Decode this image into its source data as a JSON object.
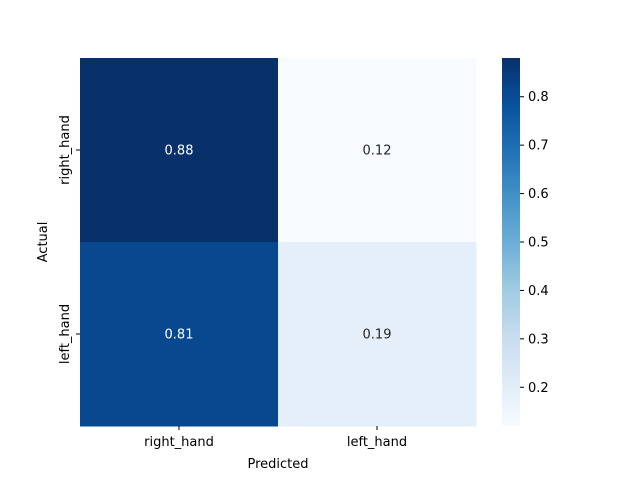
{
  "chart_data": {
    "type": "heatmap",
    "title": "",
    "xlabel": "Predicted",
    "ylabel": "Actual",
    "x_categories": [
      "right_hand",
      "left_hand"
    ],
    "y_categories": [
      "right_hand",
      "left_hand"
    ],
    "values": [
      [
        0.88,
        0.12
      ],
      [
        0.81,
        0.19
      ]
    ],
    "value_labels": [
      [
        "0.88",
        "0.12"
      ],
      [
        "0.81",
        "0.19"
      ]
    ],
    "colormap": "Blues",
    "colorbar": {
      "range": [
        0.12,
        0.88
      ],
      "ticks": [
        "0.2",
        "0.3",
        "0.4",
        "0.5",
        "0.6",
        "0.7",
        "0.8"
      ],
      "tick_values": [
        0.2,
        0.3,
        0.4,
        0.5,
        0.6,
        0.7,
        0.8
      ]
    },
    "grid": false,
    "legend": "colorbar-right"
  }
}
